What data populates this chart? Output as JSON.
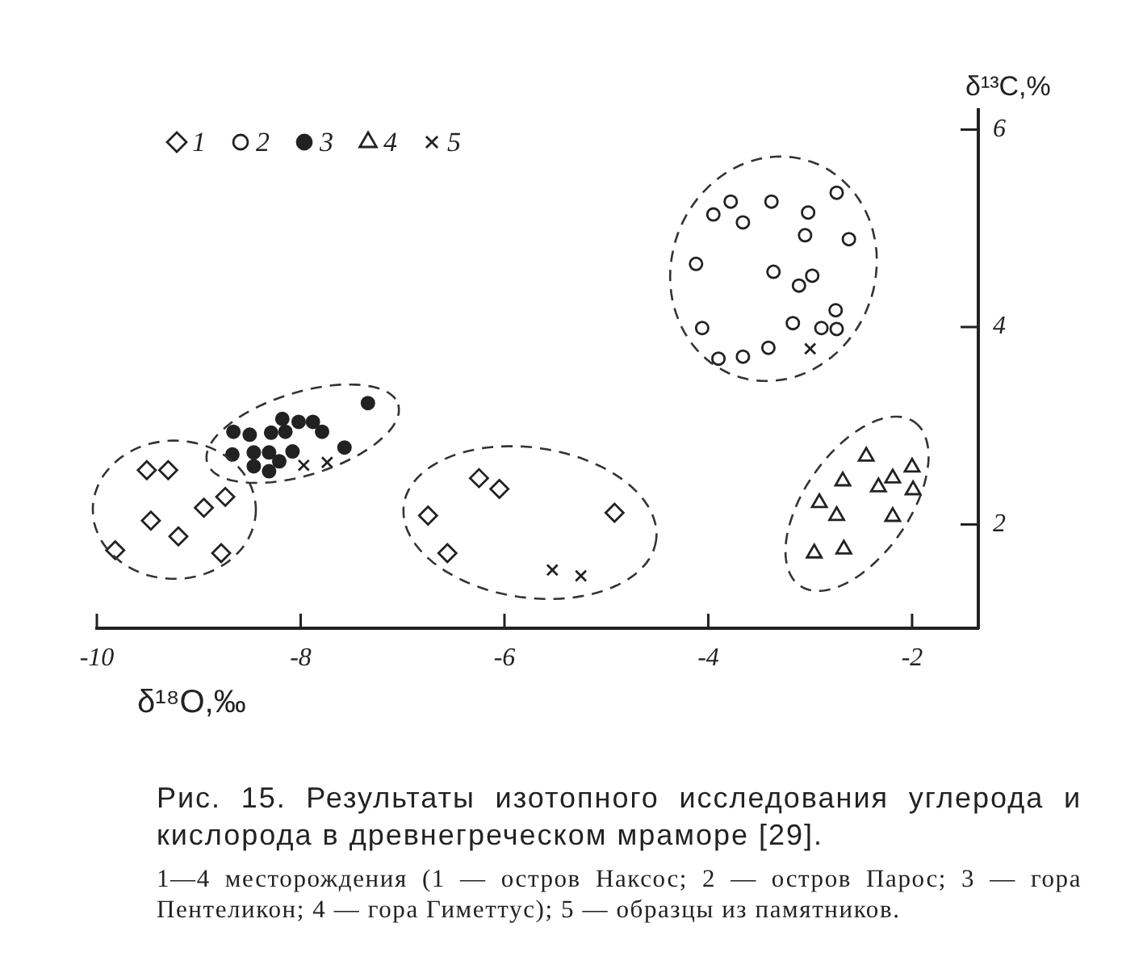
{
  "chart_data": {
    "type": "scatter",
    "title": "Рис. 15. Результаты изотопного исследования углерода и кислорода в древнегреческом мраморе [29].",
    "xlabel": "δ¹⁸O,‰",
    "ylabel": "δ¹³C,%",
    "annotations": [
      "1—4 месторождения (1 — остров Наксос; 2 — остров Парос; 3 — гора Пентеликон; 4 — гора Гиметтус); 5 — образцы из памятников."
    ],
    "xlim": [
      -10,
      -1.35
    ],
    "ylim": [
      0.95,
      6.2
    ],
    "xticks": [
      -10,
      -8,
      -6,
      -4,
      -2
    ],
    "yticks": [
      2,
      4,
      6
    ],
    "legend": "top left",
    "series": [
      {
        "name": "1",
        "color": "#222222",
        "marker": "diamond",
        "x": [
          -9.51,
          -9.3,
          -9.47,
          -9.2,
          -8.95,
          -8.74,
          -9.82,
          -8.78,
          -6.25,
          -6.05,
          -6.75,
          -6.56,
          -4.92
        ],
        "values": [
          2.55,
          2.55,
          2.04,
          1.88,
          2.17,
          2.28,
          1.74,
          1.71,
          2.47,
          2.36,
          2.09,
          1.71,
          2.12
        ]
      },
      {
        "name": "2",
        "color": "#222222",
        "marker": "circle",
        "x": [
          -3.78,
          -3.95,
          -3.66,
          -3.38,
          -3.02,
          -2.74,
          -3.05,
          -2.62,
          -4.12,
          -3.36,
          -2.98,
          -3.11,
          -2.75,
          -2.89,
          -2.74,
          -3.17,
          -4.06,
          -3.9,
          -3.66,
          -3.41
        ],
        "values": [
          5.27,
          5.14,
          5.06,
          5.27,
          5.16,
          5.36,
          4.93,
          4.89,
          4.64,
          4.56,
          4.52,
          4.42,
          4.17,
          3.99,
          3.98,
          4.04,
          3.99,
          3.68,
          3.7,
          3.79
        ]
      },
      {
        "name": "3",
        "color": "#222222",
        "marker": "circle",
        "x": [
          -7.34,
          -8.66,
          -8.5,
          -8.29,
          -8.18,
          -8.15,
          -8.02,
          -7.88,
          -7.79,
          -8.67,
          -8.46,
          -8.31,
          -8.46,
          -8.31,
          -8.21,
          -8.08,
          -7.57
        ],
        "values": [
          3.23,
          2.94,
          2.91,
          2.93,
          3.07,
          2.94,
          3.04,
          3.04,
          2.94,
          2.71,
          2.73,
          2.73,
          2.59,
          2.54,
          2.64,
          2.74,
          2.78
        ]
      },
      {
        "name": "4",
        "color": "#222222",
        "marker": "triangle",
        "x": [
          -2.45,
          -2.0,
          -2.68,
          -2.33,
          -2.19,
          -1.99,
          -2.91,
          -2.74,
          -2.19,
          -2.96,
          -2.67
        ],
        "values": [
          2.69,
          2.58,
          2.44,
          2.38,
          2.47,
          2.35,
          2.22,
          2.09,
          2.08,
          1.71,
          1.75
        ]
      },
      {
        "name": "5",
        "color": "#222222",
        "marker": "cross",
        "x": [
          -7.97,
          -7.74,
          -5.53,
          -5.25,
          -3.0
        ],
        "values": [
          2.6,
          2.63,
          1.54,
          1.48,
          3.78
        ]
      }
    ]
  }
}
